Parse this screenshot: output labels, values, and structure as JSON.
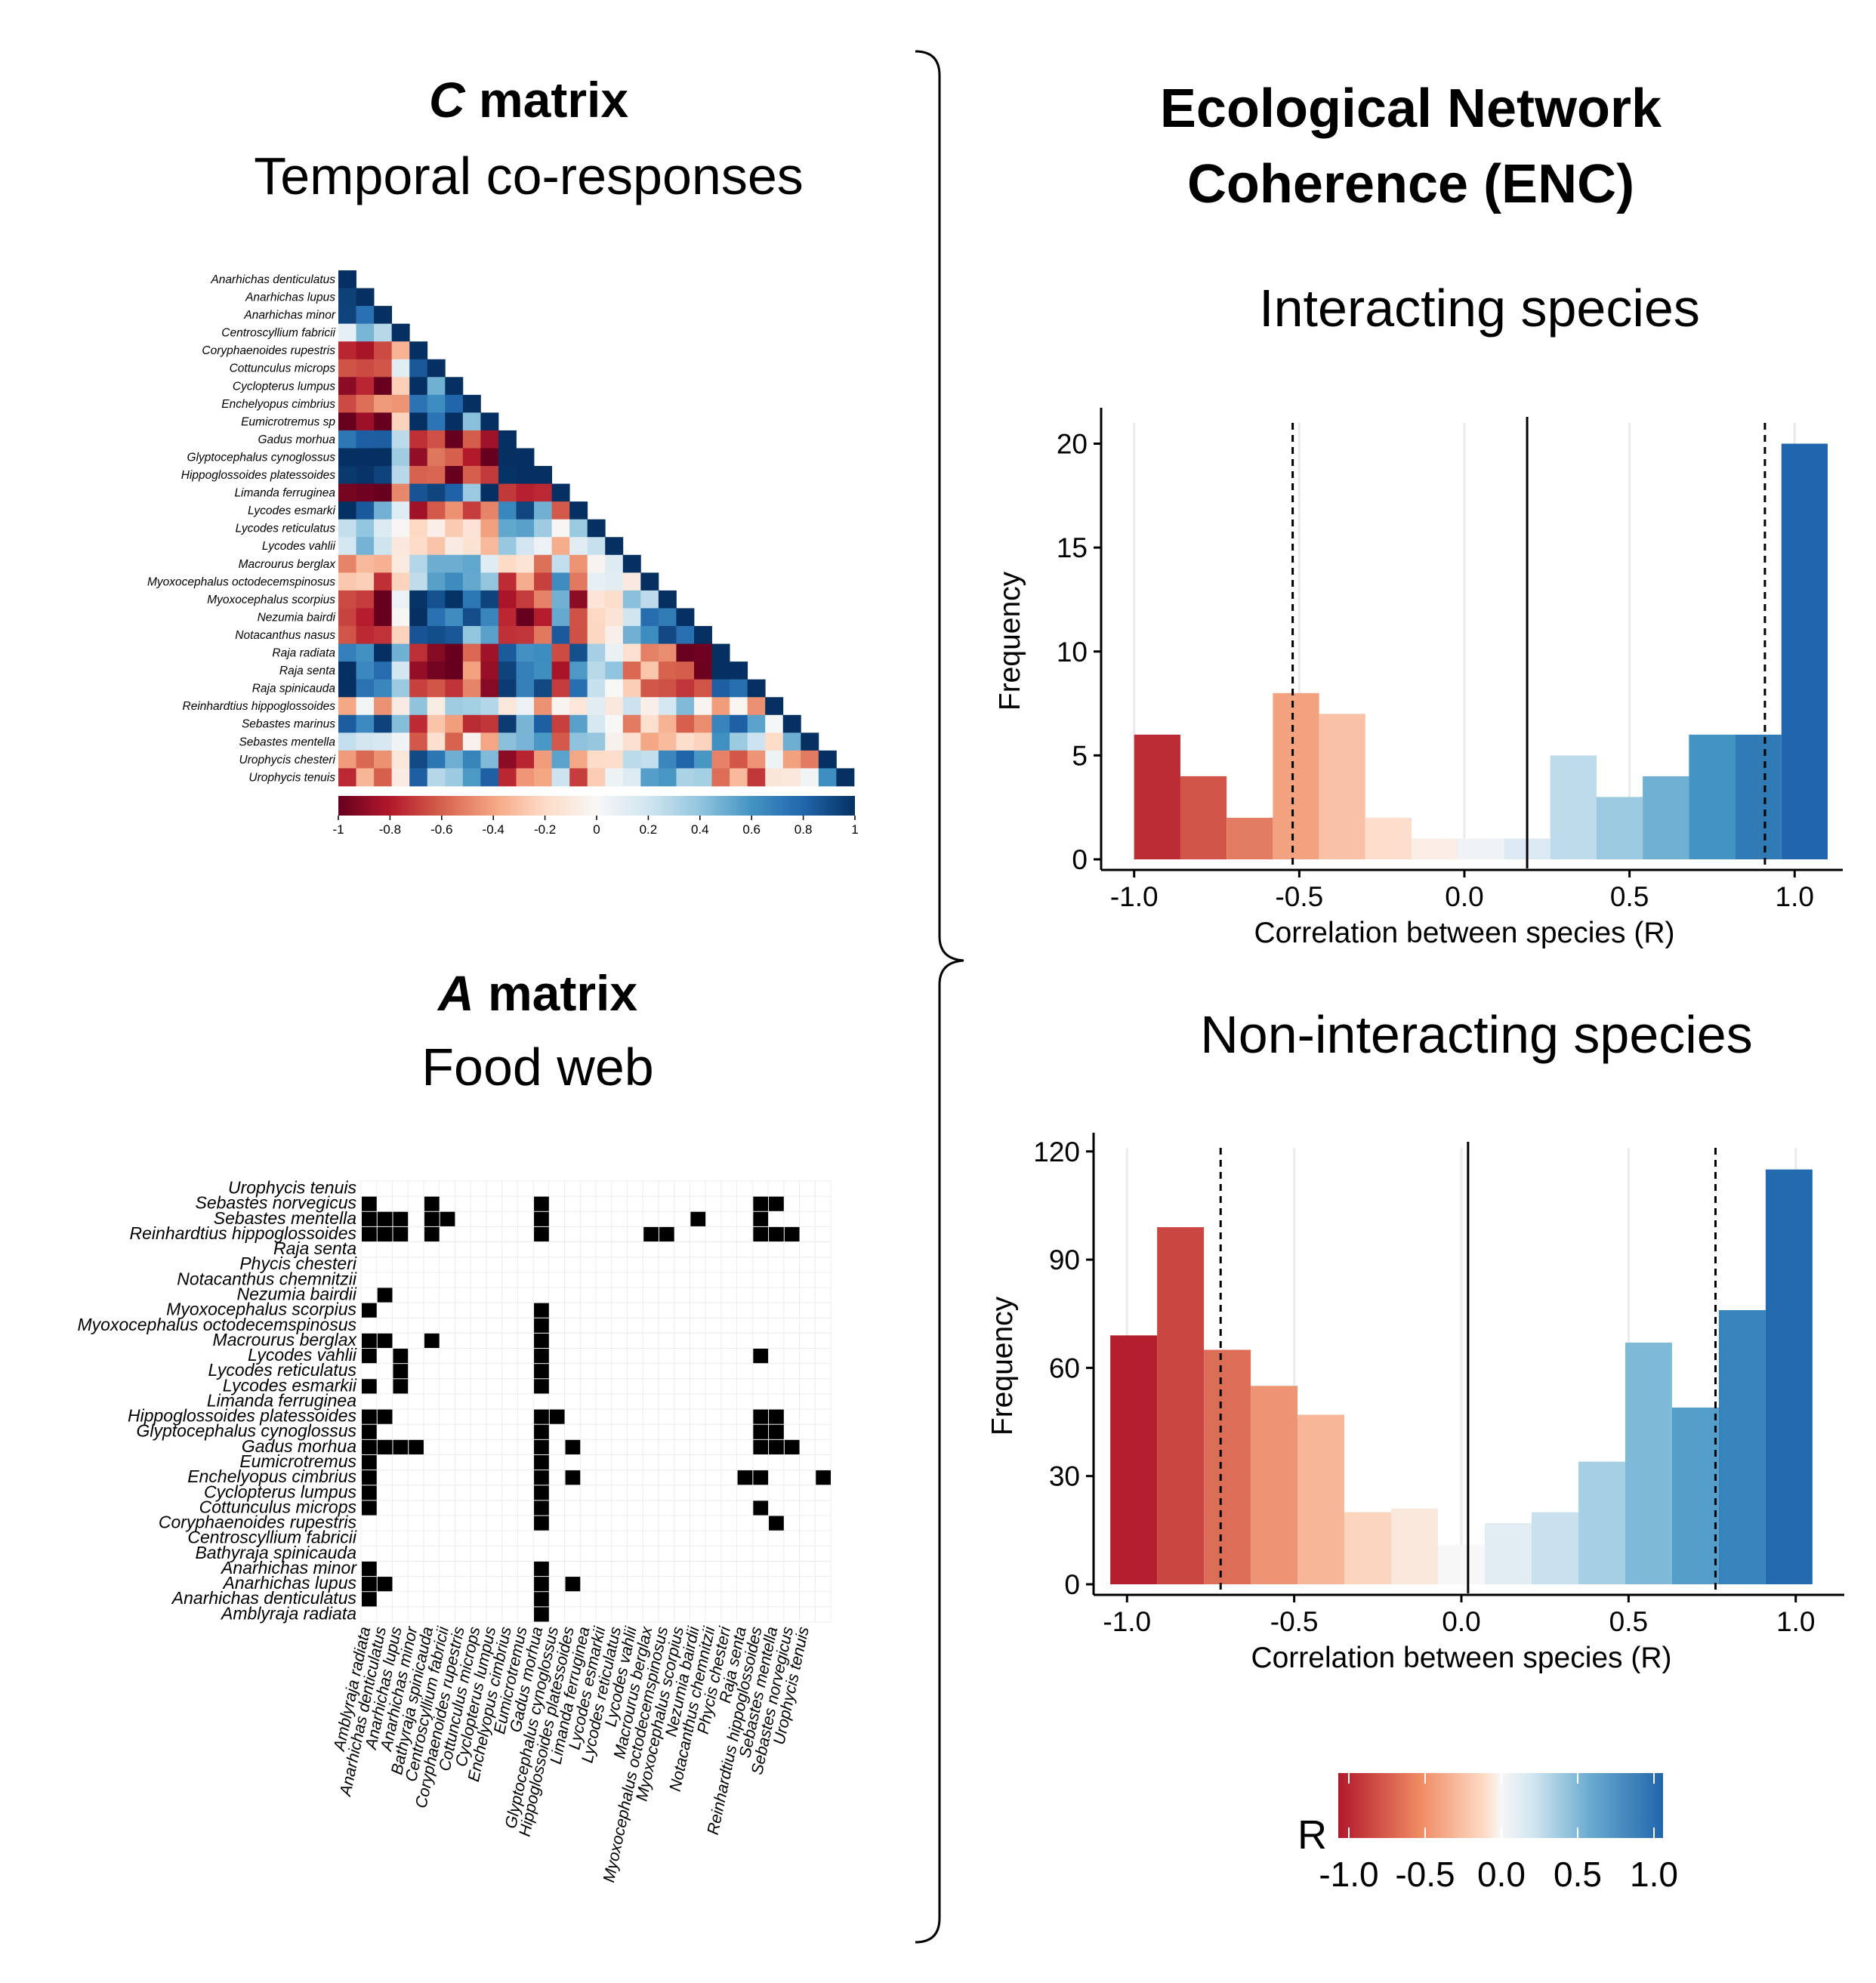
{
  "c_panel": {
    "title_symbol": "C",
    "title_rest": " matrix",
    "subtitle": "Temporal co-responses",
    "species": [
      "Anarhichas denticulatus",
      "Anarhichas lupus",
      "Anarhichas minor",
      "Centroscyllium fabricii",
      "Coryphaenoides rupestris",
      "Cottunculus microps",
      "Cyclopterus lumpus",
      "Enchelyopus cimbrius",
      "Eumicrotremus sp",
      "Gadus morhua",
      "Glyptocephalus cynoglossus",
      "Hippoglossoides platessoides",
      "Limanda ferruginea",
      "Lycodes esmarki",
      "Lycodes reticulatus",
      "Lycodes vahlii",
      "Macrourus berglax",
      "Myoxocephalus octodecemspinosus",
      "Myoxocephalus scorpius",
      "Nezumia bairdi",
      "Notacanthus nasus",
      "Raja radiata",
      "Raja senta",
      "Raja spinicauda",
      "Reinhardtius hippoglossoides",
      "Sebastes marinus",
      "Sebastes mentella",
      "Urophycis chesteri",
      "Urophycis tenuis"
    ],
    "colorbar_ticks": [
      "-1",
      "-0.8",
      "-0.6",
      "-0.4",
      "-0.2",
      "0",
      "0.2",
      "0.4",
      "0.6",
      "0.8",
      "1"
    ],
    "colors": {
      "neg": "#67001f",
      "mid": "#f7f7f7",
      "pos": "#053061"
    }
  },
  "a_panel": {
    "title_symbol": "A",
    "title_rest": " matrix",
    "subtitle": "Food web",
    "species": [
      "Amblyraja radiata",
      "Anarhichas denticulatus",
      "Anarhichas lupus",
      "Anarhichas minor",
      "Bathyraja spinicauda",
      "Centroscyllium fabricii",
      "Coryphaenoides rupestris",
      "Cottunculus microps",
      "Cyclopterus lumpus",
      "Enchelyopus cimbrius",
      "Eumicrotremus",
      "Gadus morhua",
      "Glyptocephalus cynoglossus",
      "Hippoglossoides platessoides",
      "Limanda ferruginea",
      "Lycodes esmarkii",
      "Lycodes reticulatus",
      "Lycodes vahlii",
      "Macrourus berglax",
      "Myoxocephalus octodecemspinosus",
      "Myoxocephalus scorpius",
      "Nezumia bairdii",
      "Notacanthus chemnitzii",
      "Phycis chesteri",
      "Raja senta",
      "Reinhardtius hippoglossoides",
      "Sebastes mentella",
      "Sebastes norvegicus",
      "Urophycis tenuis"
    ],
    "links": {
      "Sebastes norvegicus": [
        0,
        4,
        11,
        25,
        26
      ],
      "Sebastes mentella": [
        0,
        1,
        2,
        4,
        5,
        11,
        21,
        25
      ],
      "Reinhardtius hippoglossoides": [
        0,
        1,
        2,
        4,
        11,
        18,
        19,
        25,
        26,
        27
      ],
      "Nezumia bairdii": [
        1
      ],
      "Myoxocephalus scorpius": [
        0,
        11
      ],
      "Myoxocephalus octodecemspinosus": [
        11
      ],
      "Macrourus berglax": [
        0,
        1,
        4,
        11
      ],
      "Lycodes vahlii": [
        0,
        2,
        11,
        25
      ],
      "Lycodes reticulatus": [
        2,
        11
      ],
      "Lycodes esmarkii": [
        0,
        2,
        11
      ],
      "Hippoglossoides platessoides": [
        0,
        1,
        11,
        12,
        25,
        26
      ],
      "Glyptocephalus cynoglossus": [
        0,
        11,
        25,
        26
      ],
      "Gadus morhua": [
        0,
        1,
        2,
        3,
        11,
        13,
        25,
        26,
        27
      ],
      "Eumicrotremus": [
        0,
        11
      ],
      "Enchelyopus cimbrius": [
        0,
        11,
        13,
        24,
        25,
        29
      ],
      "Cyclopterus lumpus": [
        0,
        11
      ],
      "Cottunculus microps": [
        0,
        11,
        25
      ],
      "Coryphaenoides rupestris": [
        11,
        26
      ],
      "Anarhichas minor": [
        0,
        11
      ],
      "Anarhichas lupus": [
        0,
        1,
        11,
        13
      ],
      "Anarhichas denticulatus": [
        0,
        11
      ],
      "Amblyraja radiata": [
        11
      ]
    }
  },
  "brace_note": "",
  "enc": {
    "title_line1": "Ecological Network",
    "title_line2": "Coherence (ENC)"
  },
  "chart_data": [
    {
      "type": "bar",
      "title": "Interacting species",
      "xlabel": "Correlation between species (R)",
      "ylabel": "Frequency",
      "xlim": [
        -1.1,
        1.1
      ],
      "ylim": [
        0,
        21
      ],
      "x_ticks": [
        "-1.0",
        "-0.5",
        "0.0",
        "0.5",
        "1.0"
      ],
      "y_ticks": [
        "0",
        "5",
        "10",
        "15",
        "20"
      ],
      "bin_width": 0.14,
      "bins_center": [
        -0.93,
        -0.79,
        -0.65,
        -0.51,
        -0.37,
        -0.23,
        -0.09,
        0.05,
        0.19,
        0.33,
        0.47,
        0.61,
        0.75,
        0.89,
        1.03
      ],
      "values": [
        6,
        4,
        2,
        8,
        7,
        2,
        1,
        1,
        1,
        5,
        3,
        4,
        6,
        6,
        20
      ],
      "vlines": {
        "solid": 0.19,
        "dashed": [
          -0.52,
          0.91
        ]
      },
      "grid": "vertical"
    },
    {
      "type": "bar",
      "title": "Non-interacting species",
      "xlabel": "Correlation between species (R)",
      "ylabel": "Frequency",
      "xlim": [
        -1.1,
        1.1
      ],
      "ylim": [
        0,
        121
      ],
      "x_ticks": [
        "-1.0",
        "-0.5",
        "0.0",
        "0.5",
        "1.0"
      ],
      "y_ticks": [
        "0",
        "30",
        "60",
        "90",
        "120"
      ],
      "bin_width": 0.14,
      "bins_center": [
        -0.98,
        -0.84,
        -0.7,
        -0.56,
        -0.42,
        -0.28,
        -0.14,
        0.0,
        0.14,
        0.28,
        0.42,
        0.56,
        0.7,
        0.84,
        0.98
      ],
      "values": [
        69,
        99,
        65,
        55,
        47,
        20,
        21,
        11,
        17,
        20,
        34,
        67,
        49,
        76,
        115
      ],
      "vlines": {
        "solid": 0.02,
        "dashed": [
          -0.72,
          0.76
        ]
      },
      "grid": "vertical"
    }
  ],
  "r_legend": {
    "label": "R",
    "ticks": [
      "-1.0",
      "-0.5",
      "0.0",
      "0.5",
      "1.0"
    ],
    "colors": {
      "neg": "#b2182b",
      "mid": "#f7f7f7",
      "pos": "#2166ac"
    }
  }
}
